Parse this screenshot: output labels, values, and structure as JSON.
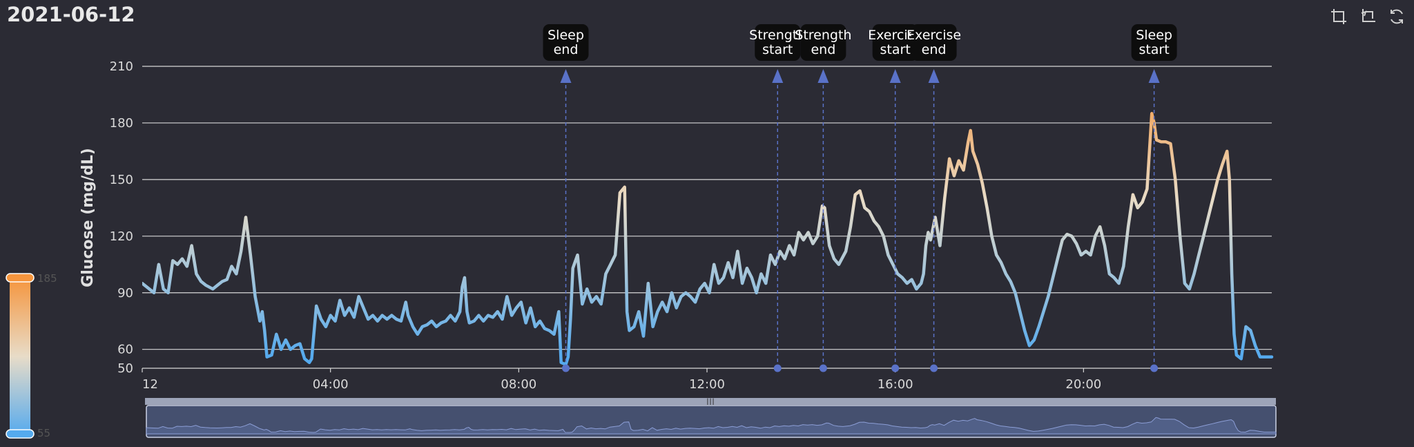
{
  "page": {
    "title": "2021-06-12"
  },
  "toolbox": {
    "icons": [
      "zoom-select-icon",
      "zoom-reset-icon",
      "restore-icon"
    ]
  },
  "colors": {
    "background": "#2b2b34",
    "low": "#55aaee",
    "mid": "#e8dcc8",
    "high": "#f5953d",
    "marker": "#5a72c8"
  },
  "visual_map": {
    "max_label": "185",
    "min_label": "55"
  },
  "chart_data": {
    "type": "line",
    "title": "2021-06-12",
    "xlabel": "",
    "ylabel": "Glucose (mg/dL)",
    "xlim": [
      0,
      24
    ],
    "ylim": [
      50,
      210
    ],
    "yticks": [
      50,
      60,
      90,
      120,
      150,
      180,
      210
    ],
    "xticks": [
      {
        "value": 0,
        "label": "12"
      },
      {
        "value": 4,
        "label": "04:00"
      },
      {
        "value": 8,
        "label": "08:00"
      },
      {
        "value": 12,
        "label": "12:00"
      },
      {
        "value": 16,
        "label": "16:00"
      },
      {
        "value": 20,
        "label": "20:00"
      }
    ],
    "grid": true,
    "events": [
      {
        "time": 9.0,
        "line1": "Sleep",
        "line2": "end"
      },
      {
        "time": 13.5,
        "line1": "Strength",
        "line2": "start"
      },
      {
        "time": 14.47,
        "line1": "Strength",
        "line2": "end"
      },
      {
        "time": 16.0,
        "line1": "Exercise",
        "line2": "start"
      },
      {
        "time": 16.82,
        "line1": "Exercise",
        "line2": "end"
      },
      {
        "time": 21.5,
        "line1": "Sleep",
        "line2": "start"
      }
    ],
    "series": [
      {
        "name": "Glucose",
        "points": [
          [
            0.0,
            95
          ],
          [
            0.15,
            92
          ],
          [
            0.25,
            90
          ],
          [
            0.35,
            105
          ],
          [
            0.45,
            92
          ],
          [
            0.55,
            90
          ],
          [
            0.65,
            107
          ],
          [
            0.75,
            105
          ],
          [
            0.85,
            108
          ],
          [
            0.95,
            104
          ],
          [
            1.05,
            115
          ],
          [
            1.15,
            100
          ],
          [
            1.25,
            96
          ],
          [
            1.35,
            94
          ],
          [
            1.5,
            92
          ],
          [
            1.6,
            94
          ],
          [
            1.7,
            96
          ],
          [
            1.8,
            97
          ],
          [
            1.9,
            104
          ],
          [
            2.0,
            100
          ],
          [
            2.1,
            112
          ],
          [
            2.2,
            130
          ],
          [
            2.3,
            110
          ],
          [
            2.4,
            88
          ],
          [
            2.5,
            75
          ],
          [
            2.55,
            80
          ],
          [
            2.6,
            70
          ],
          [
            2.65,
            56
          ],
          [
            2.75,
            57
          ],
          [
            2.85,
            68
          ],
          [
            2.95,
            60
          ],
          [
            3.05,
            65
          ],
          [
            3.15,
            60
          ],
          [
            3.25,
            62
          ],
          [
            3.35,
            63
          ],
          [
            3.45,
            55
          ],
          [
            3.55,
            53
          ],
          [
            3.6,
            55
          ],
          [
            3.7,
            83
          ],
          [
            3.8,
            76
          ],
          [
            3.9,
            72
          ],
          [
            4.0,
            78
          ],
          [
            4.1,
            75
          ],
          [
            4.2,
            86
          ],
          [
            4.3,
            78
          ],
          [
            4.4,
            82
          ],
          [
            4.5,
            77
          ],
          [
            4.6,
            88
          ],
          [
            4.7,
            82
          ],
          [
            4.8,
            76
          ],
          [
            4.9,
            78
          ],
          [
            5.0,
            75
          ],
          [
            5.1,
            78
          ],
          [
            5.2,
            76
          ],
          [
            5.3,
            78
          ],
          [
            5.4,
            76
          ],
          [
            5.5,
            75
          ],
          [
            5.6,
            85
          ],
          [
            5.65,
            78
          ],
          [
            5.75,
            72
          ],
          [
            5.85,
            68
          ],
          [
            5.95,
            72
          ],
          [
            6.05,
            73
          ],
          [
            6.15,
            75
          ],
          [
            6.25,
            72
          ],
          [
            6.35,
            74
          ],
          [
            6.45,
            75
          ],
          [
            6.55,
            78
          ],
          [
            6.65,
            75
          ],
          [
            6.75,
            80
          ],
          [
            6.8,
            93
          ],
          [
            6.85,
            98
          ],
          [
            6.9,
            80
          ],
          [
            6.95,
            74
          ],
          [
            7.05,
            75
          ],
          [
            7.15,
            78
          ],
          [
            7.25,
            75
          ],
          [
            7.35,
            78
          ],
          [
            7.45,
            77
          ],
          [
            7.55,
            80
          ],
          [
            7.65,
            76
          ],
          [
            7.75,
            88
          ],
          [
            7.85,
            78
          ],
          [
            7.95,
            82
          ],
          [
            8.05,
            85
          ],
          [
            8.15,
            74
          ],
          [
            8.25,
            82
          ],
          [
            8.35,
            72
          ],
          [
            8.45,
            75
          ],
          [
            8.55,
            71
          ],
          [
            8.65,
            70
          ],
          [
            8.75,
            68
          ],
          [
            8.85,
            80
          ],
          [
            8.9,
            53
          ],
          [
            9.0,
            52
          ],
          [
            9.05,
            56
          ],
          [
            9.1,
            76
          ],
          [
            9.15,
            103
          ],
          [
            9.25,
            110
          ],
          [
            9.35,
            84
          ],
          [
            9.45,
            92
          ],
          [
            9.55,
            85
          ],
          [
            9.65,
            88
          ],
          [
            9.75,
            84
          ],
          [
            9.85,
            100
          ],
          [
            9.95,
            105
          ],
          [
            10.05,
            110
          ],
          [
            10.15,
            143
          ],
          [
            10.25,
            146
          ],
          [
            10.3,
            80
          ],
          [
            10.35,
            70
          ],
          [
            10.45,
            72
          ],
          [
            10.55,
            80
          ],
          [
            10.65,
            67
          ],
          [
            10.75,
            95
          ],
          [
            10.85,
            72
          ],
          [
            10.95,
            80
          ],
          [
            11.05,
            85
          ],
          [
            11.15,
            80
          ],
          [
            11.25,
            90
          ],
          [
            11.35,
            82
          ],
          [
            11.45,
            88
          ],
          [
            11.55,
            90
          ],
          [
            11.65,
            88
          ],
          [
            11.75,
            85
          ],
          [
            11.85,
            92
          ],
          [
            11.95,
            95
          ],
          [
            12.05,
            90
          ],
          [
            12.15,
            105
          ],
          [
            12.25,
            95
          ],
          [
            12.35,
            98
          ],
          [
            12.45,
            106
          ],
          [
            12.55,
            98
          ],
          [
            12.65,
            112
          ],
          [
            12.75,
            95
          ],
          [
            12.85,
            103
          ],
          [
            12.95,
            98
          ],
          [
            13.05,
            90
          ],
          [
            13.15,
            100
          ],
          [
            13.25,
            95
          ],
          [
            13.35,
            110
          ],
          [
            13.45,
            105
          ],
          [
            13.55,
            112
          ],
          [
            13.65,
            108
          ],
          [
            13.75,
            115
          ],
          [
            13.85,
            110
          ],
          [
            13.95,
            122
          ],
          [
            14.05,
            118
          ],
          [
            14.15,
            122
          ],
          [
            14.25,
            116
          ],
          [
            14.35,
            120
          ],
          [
            14.45,
            136
          ],
          [
            14.5,
            135
          ],
          [
            14.55,
            125
          ],
          [
            14.6,
            115
          ],
          [
            14.7,
            108
          ],
          [
            14.8,
            105
          ],
          [
            14.95,
            112
          ],
          [
            15.05,
            125
          ],
          [
            15.15,
            142
          ],
          [
            15.25,
            144
          ],
          [
            15.35,
            135
          ],
          [
            15.45,
            133
          ],
          [
            15.55,
            128
          ],
          [
            15.65,
            125
          ],
          [
            15.75,
            120
          ],
          [
            15.85,
            110
          ],
          [
            15.95,
            105
          ],
          [
            16.05,
            100
          ],
          [
            16.15,
            98
          ],
          [
            16.25,
            95
          ],
          [
            16.35,
            97
          ],
          [
            16.45,
            92
          ],
          [
            16.55,
            95
          ],
          [
            16.6,
            100
          ],
          [
            16.65,
            115
          ],
          [
            16.7,
            122
          ],
          [
            16.75,
            118
          ],
          [
            16.85,
            130
          ],
          [
            16.95,
            115
          ],
          [
            17.05,
            140
          ],
          [
            17.15,
            161
          ],
          [
            17.25,
            152
          ],
          [
            17.35,
            160
          ],
          [
            17.45,
            155
          ],
          [
            17.55,
            170
          ],
          [
            17.6,
            176
          ],
          [
            17.65,
            165
          ],
          [
            17.75,
            158
          ],
          [
            17.85,
            148
          ],
          [
            17.95,
            135
          ],
          [
            18.05,
            120
          ],
          [
            18.15,
            110
          ],
          [
            18.25,
            106
          ],
          [
            18.35,
            100
          ],
          [
            18.45,
            96
          ],
          [
            18.55,
            90
          ],
          [
            18.65,
            80
          ],
          [
            18.75,
            70
          ],
          [
            18.85,
            62
          ],
          [
            18.95,
            65
          ],
          [
            19.05,
            72
          ],
          [
            19.15,
            80
          ],
          [
            19.25,
            88
          ],
          [
            19.35,
            98
          ],
          [
            19.45,
            108
          ],
          [
            19.55,
            118
          ],
          [
            19.65,
            121
          ],
          [
            19.75,
            120
          ],
          [
            19.85,
            116
          ],
          [
            19.95,
            110
          ],
          [
            20.05,
            112
          ],
          [
            20.15,
            110
          ],
          [
            20.25,
            120
          ],
          [
            20.35,
            125
          ],
          [
            20.45,
            115
          ],
          [
            20.55,
            100
          ],
          [
            20.65,
            98
          ],
          [
            20.75,
            95
          ],
          [
            20.85,
            104
          ],
          [
            20.95,
            125
          ],
          [
            21.05,
            142
          ],
          [
            21.15,
            135
          ],
          [
            21.25,
            138
          ],
          [
            21.35,
            145
          ],
          [
            21.45,
            185
          ],
          [
            21.5,
            180
          ],
          [
            21.55,
            171
          ],
          [
            21.65,
            170
          ],
          [
            21.75,
            170
          ],
          [
            21.85,
            169
          ],
          [
            21.95,
            150
          ],
          [
            22.05,
            120
          ],
          [
            22.15,
            95
          ],
          [
            22.25,
            92
          ],
          [
            22.35,
            100
          ],
          [
            22.45,
            110
          ],
          [
            22.55,
            120
          ],
          [
            22.65,
            130
          ],
          [
            22.75,
            140
          ],
          [
            22.85,
            150
          ],
          [
            22.95,
            158
          ],
          [
            23.05,
            165
          ],
          [
            23.1,
            150
          ],
          [
            23.15,
            100
          ],
          [
            23.2,
            68
          ],
          [
            23.25,
            57
          ],
          [
            23.35,
            55
          ],
          [
            23.45,
            72
          ],
          [
            23.55,
            70
          ],
          [
            23.65,
            62
          ],
          [
            23.75,
            56
          ],
          [
            23.85,
            56
          ],
          [
            23.95,
            56
          ],
          [
            24.0,
            56
          ]
        ]
      }
    ]
  }
}
